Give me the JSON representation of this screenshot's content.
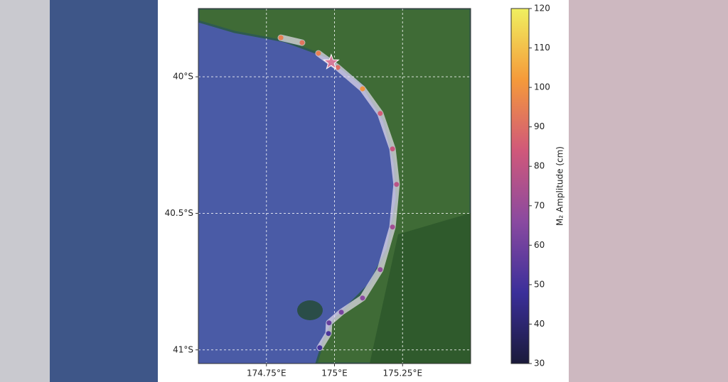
{
  "map": {
    "xlim": [
      174.5,
      175.5
    ],
    "ylim": [
      -41.05,
      -39.75
    ],
    "xticks": [
      {
        "value": 174.75,
        "label": "174.75°E"
      },
      {
        "value": 175,
        "label": "175°E"
      },
      {
        "value": 175.25,
        "label": "175.25°E"
      }
    ],
    "yticks": [
      {
        "value": -40,
        "label": "40°S"
      },
      {
        "value": -40.5,
        "label": "40.5°S"
      },
      {
        "value": -41,
        "label": "41°S"
      }
    ],
    "grid": true,
    "star": {
      "lon": 174.988,
      "lat": -39.947
    },
    "tracks": [
      {
        "lon": [
          174.803,
          174.881
        ],
        "lat": [
          -39.857,
          -39.875
        ],
        "values": [
          95,
          92
        ]
      },
      {
        "lon": [
          174.941,
          175.012,
          175.103,
          175.168,
          175.213,
          175.228,
          175.213,
          175.168,
          175.103,
          175.025,
          174.98,
          174.978,
          174.946
        ],
        "lat": [
          -39.914,
          -39.966,
          -40.044,
          -40.134,
          -40.264,
          -40.394,
          -40.55,
          -40.706,
          -40.81,
          -40.862,
          -40.901,
          -40.94,
          -40.992
        ],
        "values": [
          95,
          90,
          100,
          85,
          82,
          78,
          72,
          68,
          66,
          62,
          58,
          52,
          50
        ]
      }
    ],
    "colorbar": {
      "label": "M₂ Amplitude (cm)",
      "lim": [
        30,
        120
      ],
      "ticks": [
        30,
        40,
        50,
        60,
        70,
        80,
        90,
        100,
        110,
        120
      ]
    }
  }
}
